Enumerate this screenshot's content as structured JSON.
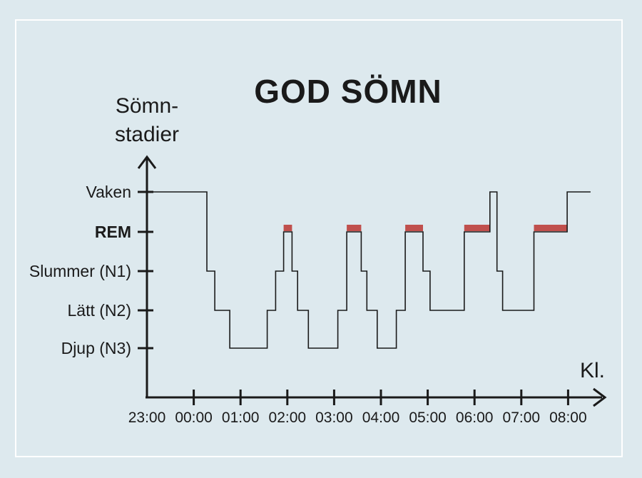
{
  "chart_data": {
    "type": "line",
    "title": "GOD SÖMN",
    "ylabel_lines": [
      "Sömn-",
      "stadier"
    ],
    "xlabel": "Kl.",
    "x_ticks": [
      "23:00",
      "00:00",
      "01:00",
      "02:00",
      "03:00",
      "04:00",
      "05:00",
      "06:00",
      "07:00",
      "08:00"
    ],
    "xlim_hours": [
      0,
      9.6
    ],
    "y_levels": [
      {
        "key": "vaken",
        "label": "Vaken",
        "color": "#1a1a1a"
      },
      {
        "key": "rem",
        "label": "REM",
        "color": "#b94e4e"
      },
      {
        "key": "n1",
        "label": "Slummer (N1)",
        "color": "#1a1a1a"
      },
      {
        "key": "n2",
        "label": "Lätt (N2)",
        "color": "#1a1a1a"
      },
      {
        "key": "n3",
        "label": "Djup (N3)",
        "color": "#1a1a1a"
      }
    ],
    "series": [
      {
        "steps": [
          {
            "start": 0.0,
            "stage": "vaken"
          },
          {
            "start": 1.28,
            "stage": "n1"
          },
          {
            "start": 1.45,
            "stage": "n2"
          },
          {
            "start": 1.77,
            "stage": "n3"
          },
          {
            "start": 2.57,
            "stage": "n2"
          },
          {
            "start": 2.75,
            "stage": "n1"
          },
          {
            "start": 2.92,
            "stage": "rem"
          },
          {
            "start": 3.1,
            "stage": "n1"
          },
          {
            "start": 3.22,
            "stage": "n2"
          },
          {
            "start": 3.45,
            "stage": "n3"
          },
          {
            "start": 4.08,
            "stage": "n2"
          },
          {
            "start": 4.27,
            "stage": "rem"
          },
          {
            "start": 4.58,
            "stage": "n1"
          },
          {
            "start": 4.7,
            "stage": "n2"
          },
          {
            "start": 4.92,
            "stage": "n3"
          },
          {
            "start": 5.33,
            "stage": "n2"
          },
          {
            "start": 5.52,
            "stage": "rem"
          },
          {
            "start": 5.9,
            "stage": "n1"
          },
          {
            "start": 6.05,
            "stage": "n2"
          },
          {
            "start": 6.78,
            "stage": "rem"
          },
          {
            "start": 7.33,
            "stage": "vaken"
          },
          {
            "start": 7.48,
            "stage": "n1"
          },
          {
            "start": 7.6,
            "stage": "n2"
          },
          {
            "start": 8.27,
            "stage": "rem"
          },
          {
            "start": 8.98,
            "stage": "vaken"
          }
        ],
        "end": 9.48
      }
    ],
    "rem_highlight_color": "#c0504d",
    "line_color": "#1a1a1a",
    "grid": false
  }
}
